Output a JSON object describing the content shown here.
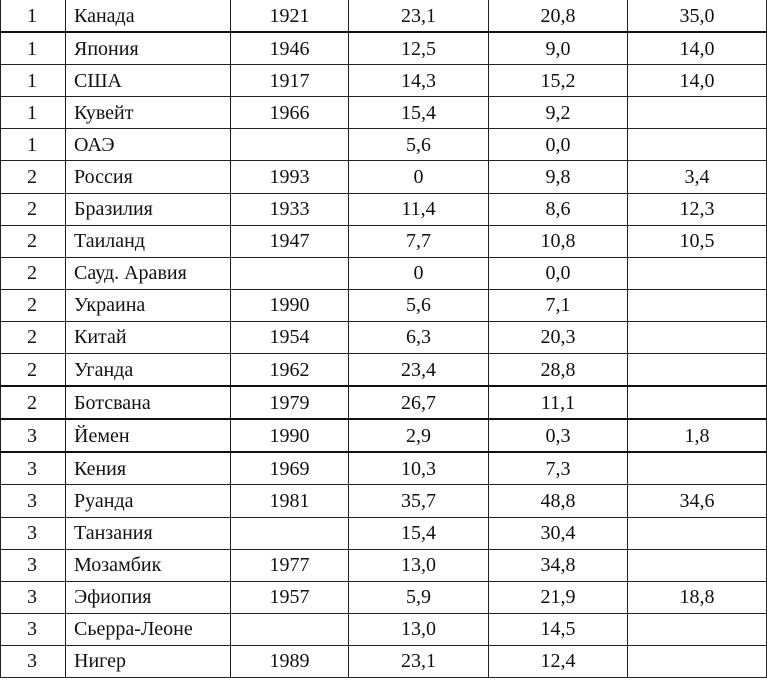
{
  "rows": [
    {
      "group": "1",
      "country": "Канада",
      "year": "1921",
      "v1": "23,1",
      "v2": "20,8",
      "v3": "35,0"
    },
    {
      "group": "1",
      "country": "Япония",
      "year": "1946",
      "v1": "12,5",
      "v2": "9,0",
      "v3": "14,0"
    },
    {
      "group": "1",
      "country": "США",
      "year": "1917",
      "v1": "14,3",
      "v2": "15,2",
      "v3": "14,0"
    },
    {
      "group": "1",
      "country": "Кувейт",
      "year": "1966",
      "v1": "15,4",
      "v2": "9,2",
      "v3": ""
    },
    {
      "group": "1",
      "country": "ОАЭ",
      "year": "",
      "v1": "5,6",
      "v2": "0,0",
      "v3": ""
    },
    {
      "group": "2",
      "country": "Россия",
      "year": "1993",
      "v1": "0",
      "v2": "9,8",
      "v3": "3,4"
    },
    {
      "group": "2",
      "country": "Бразилия",
      "year": "1933",
      "v1": "11,4",
      "v2": "8,6",
      "v3": "12,3"
    },
    {
      "group": "2",
      "country": "Таиланд",
      "year": "1947",
      "v1": "7,7",
      "v2": "10,8",
      "v3": "10,5"
    },
    {
      "group": "2",
      "country": "Сауд.  Аравия",
      "year": "",
      "v1": "0",
      "v2": "0,0",
      "v3": ""
    },
    {
      "group": "2",
      "country": "Украина",
      "year": "1990",
      "v1": "5,6",
      "v2": "7,1",
      "v3": ""
    },
    {
      "group": "2",
      "country": "Китай",
      "year": "1954",
      "v1": "6,3",
      "v2": "20,3",
      "v3": ""
    },
    {
      "group": "2",
      "country": "Уганда",
      "year": "1962",
      "v1": "23,4",
      "v2": "28,8",
      "v3": ""
    },
    {
      "group": "2",
      "country": "Ботсвана",
      "year": "1979",
      "v1": "26,7",
      "v2": "11,1",
      "v3": ""
    },
    {
      "group": "3",
      "country": "Йемен",
      "year": "1990",
      "v1": "2,9",
      "v2": "0,3",
      "v3": "1,8"
    },
    {
      "group": "3",
      "country": "Кения",
      "year": "1969",
      "v1": "10,3",
      "v2": "7,3",
      "v3": ""
    },
    {
      "group": "3",
      "country": "Руанда",
      "year": "1981",
      "v1": "35,7",
      "v2": "48,8",
      "v3": "34,6"
    },
    {
      "group": "3",
      "country": "Танзания",
      "year": "",
      "v1": "15,4",
      "v2": "30,4",
      "v3": ""
    },
    {
      "group": "3",
      "country": "Мозамбик",
      "year": "1977",
      "v1": "13,0",
      "v2": "34,8",
      "v3": ""
    },
    {
      "group": "3",
      "country": "Эфиопия",
      "year": "1957",
      "v1": "5,9",
      "v2": "21,9",
      "v3": "18,8"
    },
    {
      "group": "3",
      "country": "Сьерра-Леоне",
      "year": "",
      "v1": "13,0",
      "v2": "14,5",
      "v3": ""
    },
    {
      "group": "3",
      "country": "Нигер",
      "year": "1989",
      "v1": "23,1",
      "v2": "12,4",
      "v3": ""
    }
  ]
}
